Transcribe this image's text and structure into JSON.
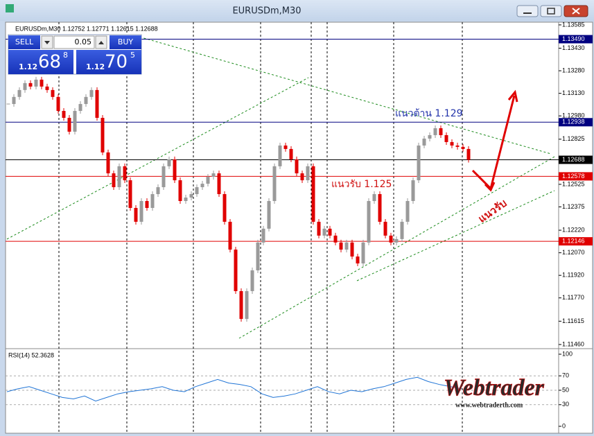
{
  "window": {
    "title": "EURUSDm,M30"
  },
  "trade_panel": {
    "sell": "SELL",
    "lot": "0.05",
    "buy": "BUY",
    "bid_prefix": "1.12",
    "bid_big": "68",
    "bid_small": "8",
    "ask_prefix": "1.12",
    "ask_big": "70",
    "ask_small": "5"
  },
  "chart_data": [
    {
      "type": "candlestick",
      "header": "EURUSDm,M30  1.12752 1.12771 1.12615 1.12688",
      "up_color": "#9a9a9a",
      "down_color": "#e00000",
      "closes": [
        1.13059,
        1.13106,
        1.13152,
        1.13198,
        1.13175,
        1.13221,
        1.13175,
        1.13152,
        1.13106,
        1.13013,
        1.12967,
        1.12875,
        1.13013,
        1.13059,
        1.13106,
        1.13152,
        1.12967,
        1.12737,
        1.12598,
        1.12506,
        1.12645,
        1.12552,
        1.12368,
        1.12276,
        1.12414,
        1.12368,
        1.1246,
        1.12506,
        1.12645,
        1.12691,
        1.12552,
        1.12414,
        1.12437,
        1.1246,
        1.12506,
        1.12529,
        1.12575,
        1.12598,
        1.1246,
        1.12276,
        1.12091,
        1.11815,
        1.1163,
        1.11815,
        1.11953,
        1.12138,
        1.1223,
        1.12414,
        1.12645,
        1.12783,
        1.1276,
        1.12691,
        1.12598,
        1.12552,
        1.12645,
        1.12276,
        1.12184,
        1.1223,
        1.12184,
        1.12138,
        1.12091,
        1.12138,
        1.12045,
        1.11999,
        1.12138,
        1.12414,
        1.1246,
        1.12276,
        1.12184,
        1.12138,
        1.12161,
        1.12276,
        1.12414,
        1.12552,
        1.12783,
        1.12829,
        1.12852,
        1.12898,
        1.12852,
        1.12806,
        1.12783,
        1.12774,
        1.1276,
        1.12688
      ],
      "ylim": [
        1.11437,
        1.13603
      ],
      "yticks": [
        1.13585,
        {
          "value": 1.1343,
          "label": "1.13430"
        },
        {
          "value": 1.1328,
          "label": "1.13280"
        },
        {
          "value": 1.1313,
          "label": "1.13130"
        },
        {
          "value": 1.1298,
          "label": "1.12980"
        },
        1.12825,
        1.12525,
        1.12375,
        {
          "value": 1.1222,
          "label": "1.12220"
        },
        {
          "value": 1.1207,
          "label": "1.12070"
        },
        {
          "value": 1.1192,
          "label": "1.11920"
        },
        {
          "value": 1.1177,
          "label": "1.11770"
        },
        1.11615,
        {
          "value": 1.1146,
          "label": "1.11460"
        }
      ],
      "levels": [
        {
          "value": 1.1349,
          "label": "1.13490",
          "color": "#000080"
        },
        {
          "value": 1.12938,
          "label": "1.12938",
          "color": "#000080"
        },
        {
          "value": 1.12688,
          "label": "1.12688",
          "color": "#000000"
        },
        {
          "value": 1.12578,
          "label": "1.12578",
          "color": "#e00000"
        },
        {
          "value": 1.12146,
          "label": "1.12146",
          "color": "#e00000"
        }
      ],
      "annotations": [
        "แนวต้าน 1.129",
        "แนวรับ 1.125",
        "แนวรับ"
      ]
    },
    {
      "type": "line",
      "label": "RSI(14) 52.3628",
      "color": "#1f74d6",
      "values": [
        48,
        52,
        55,
        50,
        45,
        40,
        38,
        42,
        35,
        40,
        45,
        48,
        50,
        52,
        55,
        50,
        48,
        55,
        60,
        65,
        60,
        58,
        55,
        45,
        40,
        42,
        45,
        50,
        55,
        48,
        45,
        50,
        48,
        52,
        55,
        60,
        65,
        68,
        62,
        58,
        55,
        52
      ],
      "ylim": [
        0,
        100
      ],
      "yticks": [
        100,
        70,
        50,
        30,
        0
      ]
    }
  ],
  "watermark": {
    "brand": "Webtrader",
    "url": "www.webtraderth.com"
  }
}
